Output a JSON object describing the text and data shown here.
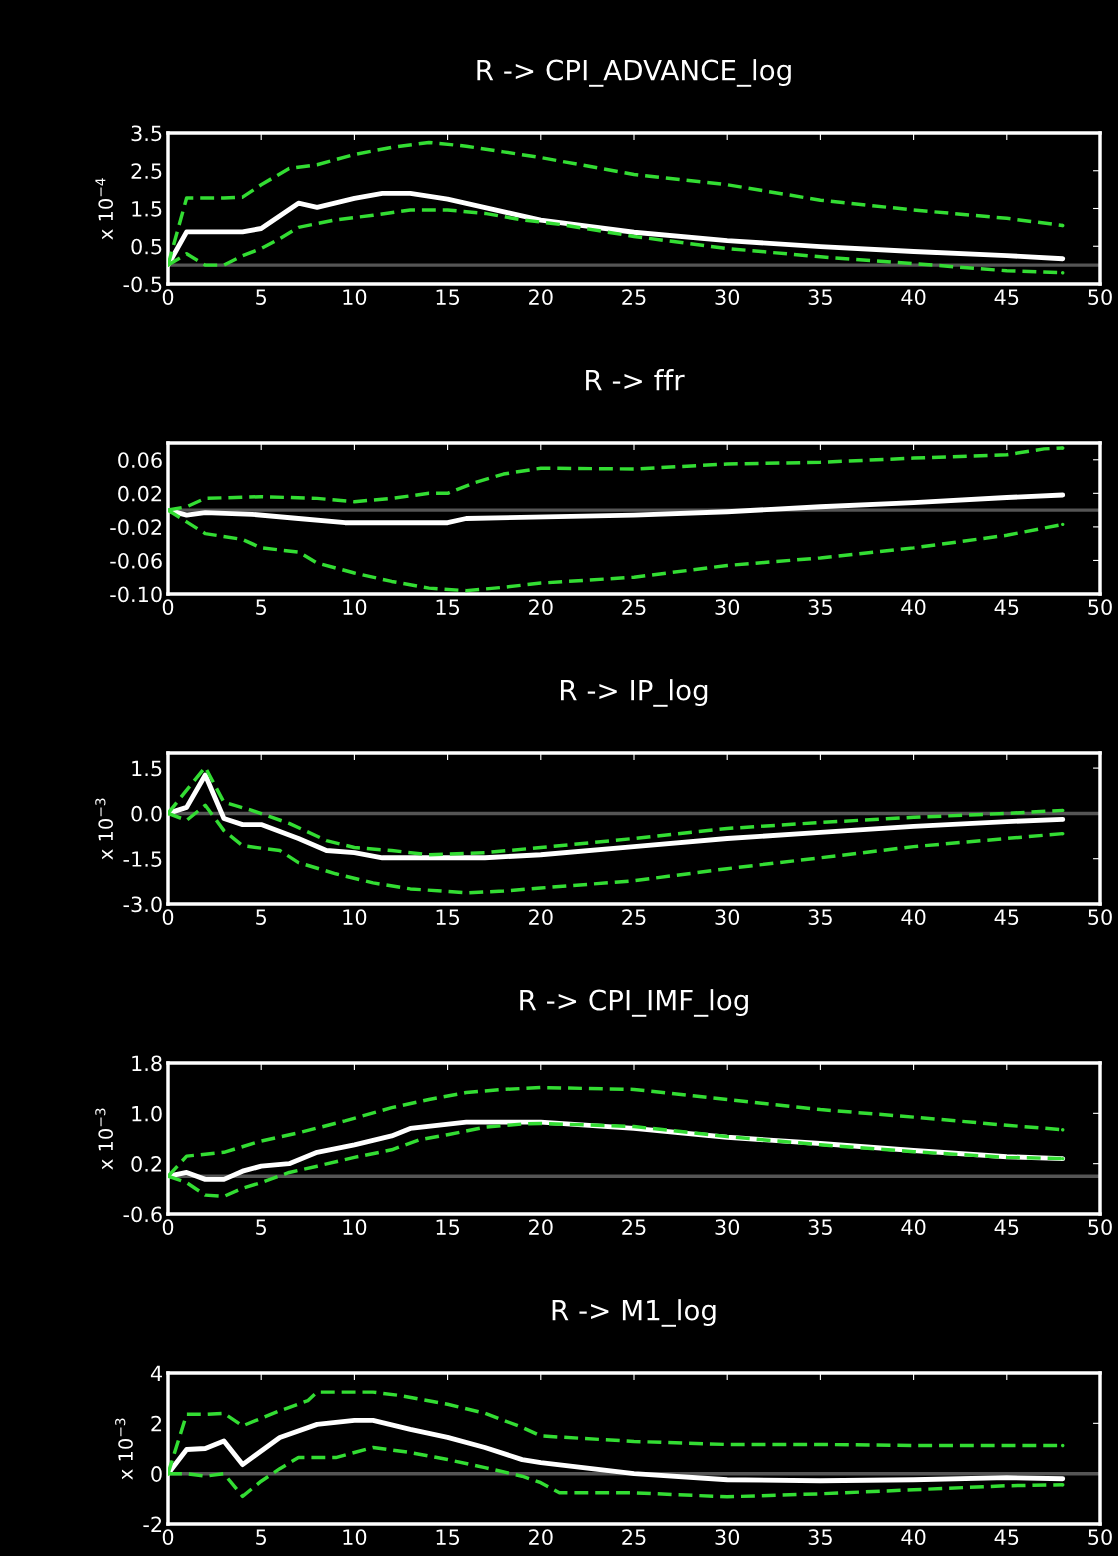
{
  "chart_data": [
    {
      "type": "line",
      "title": "R -> CPI_ADVANCE_log",
      "ylabel": "x 10$^{−4}$",
      "xlim": [
        0,
        50
      ],
      "xticks": [
        0,
        5,
        10,
        15,
        20,
        25,
        30,
        35,
        40,
        45,
        50
      ],
      "ylim": [
        -0.5,
        3.5
      ],
      "yticks": [
        -0.5,
        0.5,
        1.5,
        2.5,
        3.5
      ],
      "grid": false,
      "ref_lines": [
        {
          "axis": "y",
          "value": 0,
          "color": "#555555"
        }
      ],
      "series": [
        {
          "color": "#ffffff",
          "line_style": "solid",
          "x": [
            0,
            1,
            4,
            5,
            7,
            8,
            10,
            11.5,
            13,
            15,
            20,
            25,
            30,
            35,
            40,
            45,
            48
          ],
          "values": [
            0,
            0.88,
            0.88,
            0.97,
            1.64,
            1.53,
            1.77,
            1.9,
            1.9,
            1.75,
            1.19,
            0.87,
            0.65,
            0.49,
            0.36,
            0.25,
            0.17
          ]
        },
        {
          "color": "#33dd33",
          "line_style": "dashed",
          "x": [
            0,
            1,
            3,
            4,
            5,
            6.5,
            8,
            10,
            12,
            14,
            16,
            18,
            20,
            25,
            30,
            35,
            40,
            45,
            48
          ],
          "values": [
            0,
            1.78,
            1.78,
            1.8,
            2.13,
            2.56,
            2.66,
            2.93,
            3.12,
            3.25,
            3.15,
            3.0,
            2.85,
            2.4,
            2.13,
            1.72,
            1.46,
            1.24,
            1.05
          ]
        },
        {
          "color": "#33dd33",
          "line_style": "dashed",
          "x": [
            0,
            1,
            2,
            3,
            4,
            5,
            6,
            7,
            9,
            11,
            13,
            15,
            17,
            19,
            21,
            25,
            30,
            35,
            40,
            45,
            48
          ],
          "values": [
            0,
            0.3,
            0,
            0,
            0.25,
            0.44,
            0.7,
            1.0,
            1.2,
            1.32,
            1.46,
            1.46,
            1.37,
            1.2,
            1.08,
            0.76,
            0.44,
            0.22,
            0.04,
            -0.15,
            -0.2
          ]
        }
      ]
    },
    {
      "type": "line",
      "title": "R -> ffr",
      "xlim": [
        0,
        50
      ],
      "xticks": [
        0,
        5,
        10,
        15,
        20,
        25,
        30,
        35,
        40,
        45,
        50
      ],
      "ylim": [
        -0.1,
        0.08
      ],
      "yticks": [
        {
          "value": -0.1,
          "label": "-0.10"
        },
        {
          "value": -0.06,
          "label": "-0.06"
        },
        {
          "value": -0.02,
          "label": "-0.02"
        },
        {
          "value": 0.02,
          "label": "0.02"
        },
        {
          "value": 0.06,
          "label": "0.06"
        }
      ],
      "grid": false,
      "ref_lines": [
        {
          "axis": "y",
          "value": 0,
          "color": "#555555"
        }
      ],
      "series": [
        {
          "color": "#ffffff",
          "line_style": "solid",
          "x": [
            0,
            1,
            2,
            4.5,
            7,
            9.5,
            15,
            16,
            25,
            30,
            35,
            40,
            45,
            48
          ],
          "values": [
            0,
            -0.006,
            -0.003,
            -0.005,
            -0.01,
            -0.015,
            -0.015,
            -0.01,
            -0.006,
            -0.002,
            0.004,
            0.009,
            0.015,
            0.018
          ]
        },
        {
          "color": "#33dd33",
          "line_style": "dashed",
          "x": [
            0,
            1,
            2,
            5,
            8,
            10,
            12,
            14,
            15,
            16.5,
            18,
            20,
            25,
            30,
            35,
            40,
            45,
            47,
            48
          ],
          "values": [
            0,
            0.004,
            0.014,
            0.016,
            0.014,
            0.01,
            0.014,
            0.02,
            0.02,
            0.033,
            0.043,
            0.05,
            0.049,
            0.055,
            0.057,
            0.062,
            0.066,
            0.073,
            0.074
          ]
        },
        {
          "color": "#33dd33",
          "line_style": "dashed",
          "x": [
            0,
            1,
            2,
            4,
            5,
            7,
            8,
            10,
            12,
            14,
            16,
            18,
            20,
            25,
            30,
            35,
            40,
            45,
            48
          ],
          "values": [
            0,
            -0.014,
            -0.028,
            -0.035,
            -0.045,
            -0.05,
            -0.063,
            -0.075,
            -0.085,
            -0.093,
            -0.096,
            -0.092,
            -0.087,
            -0.08,
            -0.066,
            -0.057,
            -0.045,
            -0.03,
            -0.017
          ]
        }
      ]
    },
    {
      "type": "line",
      "title": "R -> IP_log",
      "ylabel": "x 10$^{−3}$",
      "xlim": [
        0,
        50
      ],
      "xticks": [
        0,
        5,
        10,
        15,
        20,
        25,
        30,
        35,
        40,
        45,
        50
      ],
      "ylim": [
        -3,
        2
      ],
      "yticks": [
        {
          "value": -3,
          "label": "-3.0"
        },
        {
          "value": -1.5,
          "label": "-1.5"
        },
        {
          "value": 0,
          "label": "0.0"
        },
        {
          "value": 1.5,
          "label": "1.5"
        }
      ],
      "grid": false,
      "ref_lines": [
        {
          "axis": "y",
          "value": 0,
          "color": "#555555"
        }
      ],
      "series": [
        {
          "color": "#ffffff",
          "line_style": "solid",
          "x": [
            0,
            1,
            2,
            3,
            4,
            5,
            7,
            8.5,
            10,
            11.5,
            17,
            20,
            25,
            30,
            35,
            40,
            45,
            48
          ],
          "values": [
            0,
            0.2,
            1.27,
            -0.17,
            -0.37,
            -0.37,
            -0.83,
            -1.23,
            -1.3,
            -1.47,
            -1.47,
            -1.37,
            -1.1,
            -0.83,
            -0.63,
            -0.43,
            -0.27,
            -0.2
          ]
        },
        {
          "color": "#33dd33",
          "line_style": "dashed",
          "x": [
            0,
            1,
            2,
            3,
            4.5,
            6.5,
            8.5,
            10,
            12,
            14,
            17,
            20,
            25,
            30,
            35,
            40,
            45,
            48
          ],
          "values": [
            0,
            0.77,
            1.53,
            0.37,
            0.1,
            -0.33,
            -0.9,
            -1.13,
            -1.23,
            -1.37,
            -1.3,
            -1.13,
            -0.83,
            -0.5,
            -0.3,
            -0.13,
            0,
            0.1
          ]
        },
        {
          "color": "#33dd33",
          "line_style": "dashed",
          "x": [
            0,
            1,
            2,
            3,
            4,
            6,
            7,
            9,
            11,
            13,
            16,
            18,
            20,
            25,
            30,
            35,
            40,
            45,
            48
          ],
          "values": [
            0,
            -0.23,
            0.27,
            -0.57,
            -1.07,
            -1.23,
            -1.63,
            -2.0,
            -2.3,
            -2.5,
            -2.63,
            -2.57,
            -2.47,
            -2.23,
            -1.83,
            -1.47,
            -1.1,
            -0.83,
            -0.67
          ]
        }
      ]
    },
    {
      "type": "line",
      "title": "R -> CPI_IMF_log",
      "ylabel": "x 10$^{−3}$",
      "xlim": [
        0,
        50
      ],
      "xticks": [
        0,
        5,
        10,
        15,
        20,
        25,
        30,
        35,
        40,
        45,
        50
      ],
      "ylim": [
        -0.6,
        1.8
      ],
      "yticks": [
        -0.6,
        0.2,
        {
          "value": 1,
          "label": "1.0"
        },
        1.8
      ],
      "grid": false,
      "ref_lines": [
        {
          "axis": "y",
          "value": 0,
          "color": "#555555"
        }
      ],
      "series": [
        {
          "color": "#ffffff",
          "line_style": "solid",
          "x": [
            0,
            1,
            2,
            3,
            4,
            5,
            6.5,
            8,
            10,
            12,
            13,
            16,
            20,
            25,
            30,
            35,
            40,
            45,
            48
          ],
          "values": [
            0,
            0.06,
            -0.05,
            -0.05,
            0.08,
            0.16,
            0.2,
            0.38,
            0.5,
            0.64,
            0.76,
            0.86,
            0.86,
            0.76,
            0.62,
            0.52,
            0.41,
            0.31,
            0.28
          ]
        },
        {
          "color": "#33dd33",
          "line_style": "dashed",
          "x": [
            0,
            1,
            3,
            5,
            7,
            9.5,
            12,
            14,
            16,
            18,
            20,
            25,
            30,
            35,
            40,
            45,
            48
          ],
          "values": [
            0,
            0.32,
            0.38,
            0.56,
            0.69,
            0.88,
            1.09,
            1.22,
            1.33,
            1.38,
            1.41,
            1.38,
            1.22,
            1.06,
            0.94,
            0.81,
            0.74
          ]
        },
        {
          "color": "#33dd33",
          "line_style": "dashed",
          "x": [
            0,
            1,
            2,
            3,
            4,
            5,
            6.5,
            8,
            10,
            12,
            13.5,
            15,
            17,
            19,
            20,
            25,
            30,
            35,
            40,
            45,
            48
          ],
          "values": [
            0,
            -0.1,
            -0.3,
            -0.32,
            -0.19,
            -0.1,
            0.06,
            0.16,
            0.3,
            0.42,
            0.58,
            0.66,
            0.78,
            0.83,
            0.84,
            0.79,
            0.63,
            0.5,
            0.39,
            0.3,
            0.28
          ]
        }
      ]
    },
    {
      "type": "line",
      "title": "R -> M1_log",
      "ylabel": "x 10$^{−3}$",
      "xlim": [
        0,
        50
      ],
      "xticks": [
        0,
        5,
        10,
        15,
        20,
        25,
        30,
        35,
        40,
        45,
        50
      ],
      "ylim": [
        -2,
        4
      ],
      "yticks": [
        -2,
        0,
        2,
        4
      ],
      "grid": false,
      "ref_lines": [
        {
          "axis": "y",
          "value": 0,
          "color": "#555555"
        }
      ],
      "series": [
        {
          "color": "#ffffff",
          "line_style": "solid",
          "x": [
            0,
            1,
            2,
            3,
            4,
            6,
            8,
            10,
            11,
            13,
            15,
            17,
            19,
            20,
            25,
            30,
            35,
            40,
            45,
            48
          ],
          "values": [
            0,
            0.96,
            1.0,
            1.3,
            0.36,
            1.44,
            1.96,
            2.12,
            2.12,
            1.76,
            1.44,
            1.04,
            0.56,
            0.44,
            0,
            -0.24,
            -0.28,
            -0.24,
            -0.16,
            -0.2
          ]
        },
        {
          "color": "#33dd33",
          "line_style": "dashed",
          "x": [
            0,
            1,
            2,
            3,
            4,
            6,
            7.5,
            8,
            11,
            12.5,
            15,
            17,
            19,
            20,
            25,
            30,
            35,
            40,
            45,
            48
          ],
          "values": [
            0,
            2.36,
            2.36,
            2.4,
            1.9,
            2.5,
            2.9,
            3.24,
            3.24,
            3.1,
            2.76,
            2.4,
            1.84,
            1.5,
            1.28,
            1.16,
            1.16,
            1.12,
            1.12,
            1.12
          ]
        },
        {
          "color": "#33dd33",
          "line_style": "dashed",
          "x": [
            0,
            1,
            2,
            3,
            4,
            5,
            6,
            7,
            9,
            10,
            11,
            13,
            15,
            17,
            19,
            20,
            21,
            25,
            30,
            35,
            40,
            45,
            48
          ],
          "values": [
            0,
            0,
            -0.1,
            0,
            -0.9,
            -0.3,
            0.2,
            0.64,
            0.64,
            0.84,
            1.04,
            0.84,
            0.56,
            0.24,
            -0.1,
            -0.36,
            -0.76,
            -0.76,
            -0.92,
            -0.8,
            -0.64,
            -0.48,
            -0.44
          ]
        }
      ]
    }
  ]
}
